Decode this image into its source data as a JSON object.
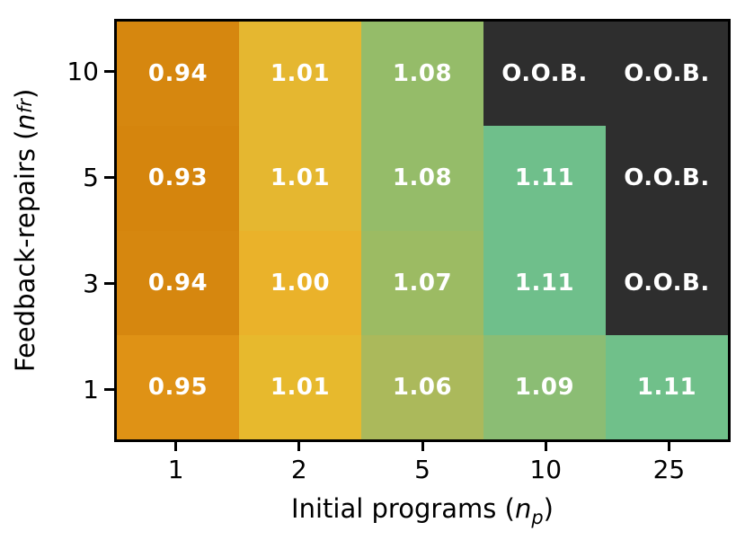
{
  "chart_data": {
    "type": "heatmap",
    "xlabel": {
      "prefix": "Initial programs (",
      "var": "n",
      "sub": "p",
      "suffix": ")"
    },
    "ylabel": {
      "prefix": "Feedback-repairs (",
      "var": "n",
      "sub": "fr",
      "suffix": ")"
    },
    "x_categories": [
      "1",
      "2",
      "5",
      "10",
      "25"
    ],
    "y_categories": [
      "10",
      "5",
      "3",
      "1"
    ],
    "oob_label": "O.O.B.",
    "oob_color": "#2E2E2E",
    "cell_text_color": "#FFFFFF",
    "border_color": "#000000",
    "rows": [
      {
        "y": "10",
        "values": [
          "0.94",
          "1.01",
          "1.08",
          "O.O.B.",
          "O.O.B."
        ],
        "colors": [
          "#D6870F",
          "#E5B730",
          "#95BC69",
          "#2E2E2E",
          "#2E2E2E"
        ]
      },
      {
        "y": "5",
        "values": [
          "0.93",
          "1.01",
          "1.08",
          "1.11",
          "O.O.B."
        ],
        "colors": [
          "#D5850D",
          "#E5B730",
          "#95BC69",
          "#6FBF8B",
          "#2E2E2E"
        ]
      },
      {
        "y": "3",
        "values": [
          "0.94",
          "1.00",
          "1.07",
          "1.11",
          "O.O.B."
        ],
        "colors": [
          "#D6870F",
          "#EAB22A",
          "#9CBB63",
          "#6FBF8B",
          "#2E2E2E"
        ]
      },
      {
        "y": "1",
        "values": [
          "0.95",
          "1.01",
          "1.06",
          "1.09",
          "1.11"
        ],
        "colors": [
          "#DF9215",
          "#E7B92D",
          "#ABB95B",
          "#8BBD74",
          "#70C08A"
        ]
      }
    ]
  }
}
